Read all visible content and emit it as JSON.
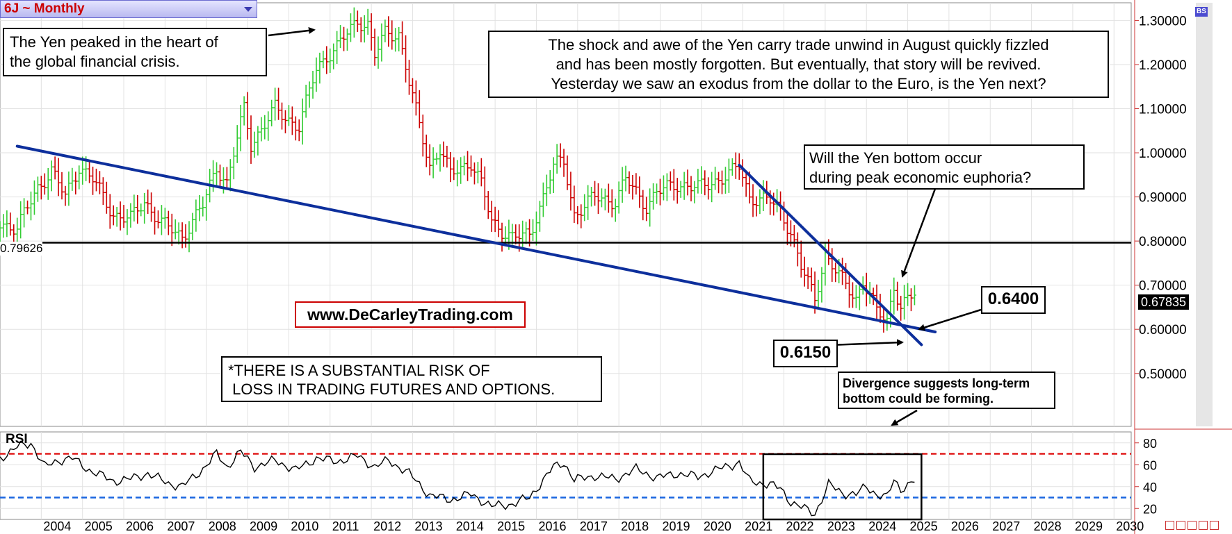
{
  "header": {
    "symbol_title": "6J ~ Monthly"
  },
  "annotations": {
    "peak_note": [
      "The Yen peaked in the heart of",
      "the global financial crisis."
    ],
    "shock_note": [
      "The shock and awe of the Yen carry trade unwind in August quickly fizzled",
      "and has been mostly forgotten. But eventually, that story will be revived.",
      "Yesterday we saw an exodus from the dollar to the Euro, is the Yen next?"
    ],
    "bottom_note": [
      "Will the Yen bottom occur",
      "during peak economic euphoria?"
    ],
    "risk_note": [
      "*THERE IS A SUBSTANTIAL RISK OF",
      " LOSS IN TRADING FUTURES AND OPTIONS."
    ],
    "divergence_note": [
      "Divergence suggests long-term",
      "bottom could be forming."
    ],
    "label_0640": "0.6400",
    "label_0615": "0.6150",
    "website": "www.DeCarleyTrading.com"
  },
  "price_panel": {
    "level_label": "0.79626",
    "last_price": "0.67835",
    "bs_icon": "BS"
  },
  "rsi_panel": {
    "title": "RSI"
  },
  "colors": {
    "up_bar": "#33cc33",
    "down_bar": "#cc0000",
    "trendline": "#0d2f9c",
    "overbought": "#e01b1b",
    "oversold": "#1a66e0",
    "title_text": "#cc0000"
  },
  "chart_data": [
    {
      "type": "bar",
      "name_ref": "price",
      "x_axis": {
        "type": "date",
        "range": [
          "2003-01",
          "2030-06"
        ],
        "tick_labels": [
          "2004",
          "2005",
          "2006",
          "2007",
          "2008",
          "2009",
          "2010",
          "2011",
          "2012",
          "2013",
          "2014",
          "2015",
          "2016",
          "2017",
          "2018",
          "2019",
          "2020",
          "2021",
          "2022",
          "2023",
          "2024",
          "2025",
          "2026",
          "2027",
          "2028",
          "2029",
          "2030"
        ]
      },
      "y_axis": {
        "range": [
          0.38,
          1.34
        ],
        "side": "right",
        "tick_labels": [
          "1.30000",
          "1.20000",
          "1.10000",
          "1.00000",
          "0.90000",
          "0.80000",
          "0.70000",
          "0.60000",
          "0.50000"
        ],
        "tick_values": [
          1.3,
          1.2,
          1.1,
          1.0,
          0.9,
          0.8,
          0.7,
          0.6,
          0.5
        ]
      },
      "grid": true,
      "anchor_closes": [
        [
          "2003-01",
          0.84
        ],
        [
          "2003-06",
          0.83
        ],
        [
          "2003-12",
          0.92
        ],
        [
          "2004-04",
          0.96
        ],
        [
          "2004-08",
          0.9
        ],
        [
          "2004-12",
          0.97
        ],
        [
          "2005-04",
          0.94
        ],
        [
          "2005-10",
          0.86
        ],
        [
          "2006-03",
          0.85
        ],
        [
          "2006-07",
          0.89
        ],
        [
          "2006-12",
          0.84
        ],
        [
          "2007-06",
          0.81
        ],
        [
          "2007-12",
          0.88
        ],
        [
          "2008-04",
          0.97
        ],
        [
          "2008-07",
          0.93
        ],
        [
          "2008-12",
          1.1
        ],
        [
          "2009-02",
          1.02
        ],
        [
          "2009-09",
          1.1
        ],
        [
          "2009-12",
          1.08
        ],
        [
          "2010-04",
          1.06
        ],
        [
          "2010-09",
          1.19
        ],
        [
          "2010-12",
          1.22
        ],
        [
          "2011-03",
          1.24
        ],
        [
          "2011-09",
          1.3
        ],
        [
          "2011-12",
          1.29
        ],
        [
          "2012-02",
          1.22
        ],
        [
          "2012-05",
          1.27
        ],
        [
          "2012-09",
          1.27
        ],
        [
          "2012-12",
          1.16
        ],
        [
          "2013-03",
          1.06
        ],
        [
          "2013-06",
          0.97
        ],
        [
          "2013-09",
          1.01
        ],
        [
          "2013-12",
          0.95
        ],
        [
          "2014-06",
          0.98
        ],
        [
          "2014-09",
          0.93
        ],
        [
          "2014-12",
          0.84
        ],
        [
          "2015-06",
          0.81
        ],
        [
          "2015-11",
          0.81
        ],
        [
          "2016-02",
          0.88
        ],
        [
          "2016-06",
          0.97
        ],
        [
          "2016-09",
          0.98
        ],
        [
          "2016-12",
          0.86
        ],
        [
          "2017-06",
          0.9
        ],
        [
          "2017-12",
          0.89
        ],
        [
          "2018-03",
          0.94
        ],
        [
          "2018-09",
          0.88
        ],
        [
          "2018-12",
          0.91
        ],
        [
          "2019-06",
          0.93
        ],
        [
          "2019-12",
          0.92
        ],
        [
          "2020-03",
          0.93
        ],
        [
          "2020-09",
          0.95
        ],
        [
          "2020-12",
          0.97
        ],
        [
          "2021-03",
          0.9
        ],
        [
          "2021-09",
          0.89
        ],
        [
          "2021-12",
          0.87
        ],
        [
          "2022-03",
          0.82
        ],
        [
          "2022-06",
          0.74
        ],
        [
          "2022-10",
          0.67
        ],
        [
          "2023-01",
          0.77
        ],
        [
          "2023-05",
          0.72
        ],
        [
          "2023-10",
          0.67
        ],
        [
          "2023-12",
          0.71
        ],
        [
          "2024-04",
          0.64
        ],
        [
          "2024-07",
          0.62
        ],
        [
          "2024-09",
          0.7
        ],
        [
          "2024-11",
          0.65
        ],
        [
          "2025-03",
          0.68
        ]
      ],
      "reference_line": {
        "value": 0.79626
      },
      "trendlines": [
        {
          "from": [
            "2003-06",
            1.015
          ],
          "to": [
            "2025-09",
            0.594
          ]
        },
        {
          "from": [
            "2020-12",
            0.972
          ],
          "to": [
            "2025-05",
            0.565
          ]
        }
      ]
    },
    {
      "type": "line",
      "name_ref": "rsi",
      "y_axis": {
        "range": [
          10,
          90
        ],
        "tick_labels": [
          "80",
          "60",
          "40",
          "20"
        ],
        "tick_values": [
          80,
          60,
          40,
          20
        ]
      },
      "overbought": 70,
      "oversold": 30,
      "anchors": [
        [
          "2003-01",
          66
        ],
        [
          "2003-06",
          76
        ],
        [
          "2003-10",
          80
        ],
        [
          "2004-02",
          58
        ],
        [
          "2004-06",
          64
        ],
        [
          "2004-10",
          66
        ],
        [
          "2005-03",
          55
        ],
        [
          "2005-10",
          45
        ],
        [
          "2006-03",
          47
        ],
        [
          "2006-08",
          52
        ],
        [
          "2007-02",
          43
        ],
        [
          "2007-06",
          40
        ],
        [
          "2007-12",
          56
        ],
        [
          "2008-04",
          70
        ],
        [
          "2008-07",
          58
        ],
        [
          "2008-11",
          72
        ],
        [
          "2009-03",
          58
        ],
        [
          "2009-09",
          64
        ],
        [
          "2010-03",
          55
        ],
        [
          "2010-09",
          66
        ],
        [
          "2011-03",
          63
        ],
        [
          "2011-09",
          68
        ],
        [
          "2012-02",
          58
        ],
        [
          "2012-06",
          64
        ],
        [
          "2012-12",
          52
        ],
        [
          "2013-06",
          32
        ],
        [
          "2013-12",
          28
        ],
        [
          "2014-06",
          33
        ],
        [
          "2014-12",
          22
        ],
        [
          "2015-06",
          24
        ],
        [
          "2015-11",
          30
        ],
        [
          "2016-06",
          58
        ],
        [
          "2016-09",
          62
        ],
        [
          "2016-12",
          46
        ],
        [
          "2017-06",
          50
        ],
        [
          "2017-12",
          47
        ],
        [
          "2018-06",
          56
        ],
        [
          "2018-12",
          48
        ],
        [
          "2019-06",
          52
        ],
        [
          "2019-12",
          49
        ],
        [
          "2020-06",
          56
        ],
        [
          "2020-12",
          62
        ],
        [
          "2021-03",
          45
        ],
        [
          "2021-09",
          42
        ],
        [
          "2021-12",
          38
        ],
        [
          "2022-03",
          26
        ],
        [
          "2022-10",
          15
        ],
        [
          "2023-02",
          42
        ],
        [
          "2023-06",
          34
        ],
        [
          "2023-10",
          33
        ],
        [
          "2024-01",
          40
        ],
        [
          "2024-04",
          33
        ],
        [
          "2024-07",
          30
        ],
        [
          "2024-09",
          46
        ],
        [
          "2024-11",
          38
        ],
        [
          "2025-03",
          45
        ]
      ],
      "highlight_box": {
        "from": "2021-07",
        "to": "2025-05"
      }
    }
  ]
}
